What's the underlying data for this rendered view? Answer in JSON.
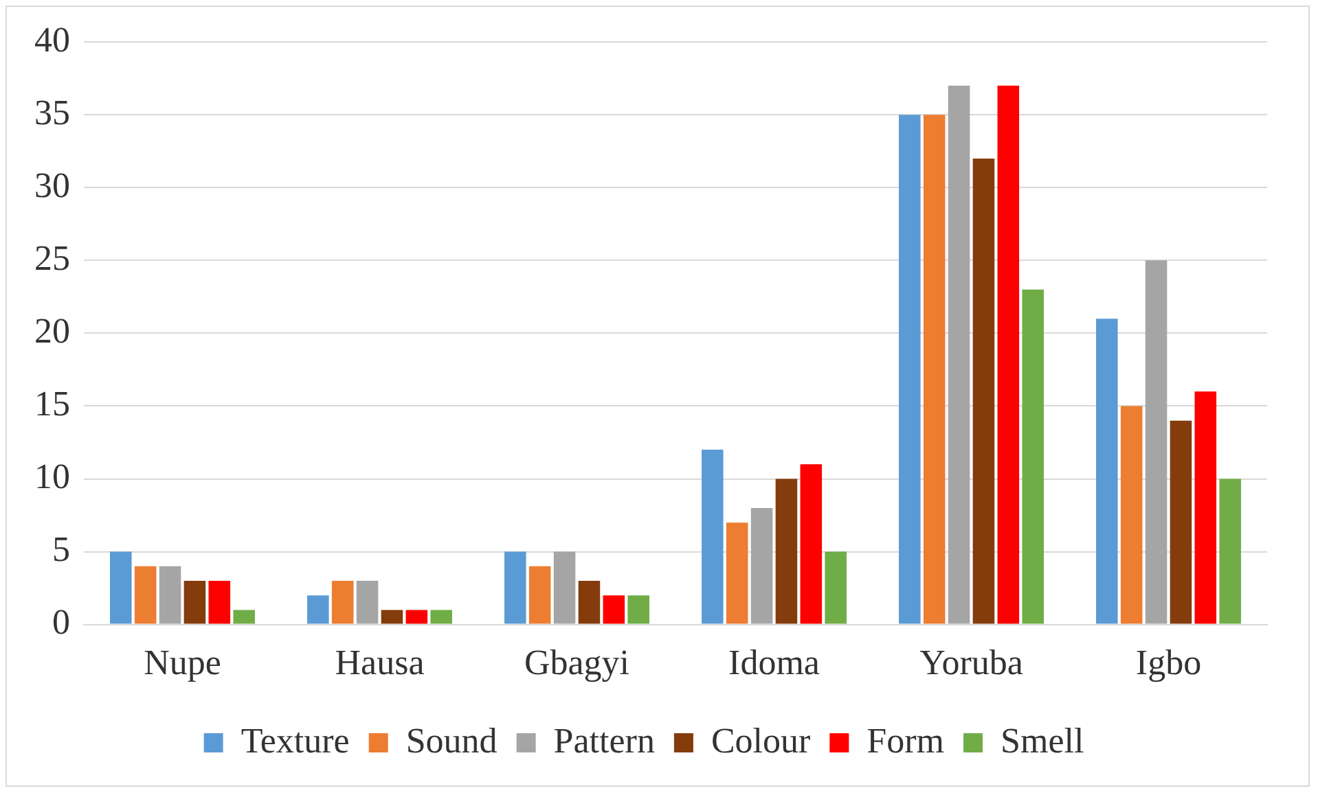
{
  "chart_data": {
    "type": "bar",
    "categories": [
      "Nupe",
      "Hausa",
      "Gbagyi",
      "Idoma",
      "Yoruba",
      "Igbo"
    ],
    "series": [
      {
        "name": "Texture",
        "color": "#5b9bd5",
        "values": [
          5,
          2,
          5,
          12,
          35,
          21
        ]
      },
      {
        "name": "Sound",
        "color": "#ed7d31",
        "values": [
          4,
          3,
          4,
          7,
          35,
          15
        ]
      },
      {
        "name": "Pattern",
        "color": "#a5a5a5",
        "values": [
          4,
          3,
          5,
          8,
          37,
          25
        ]
      },
      {
        "name": "Colour",
        "color": "#843c0c",
        "values": [
          3,
          1,
          3,
          10,
          32,
          14
        ]
      },
      {
        "name": "Form",
        "color": "#ff0000",
        "values": [
          3,
          1,
          2,
          11,
          37,
          16
        ]
      },
      {
        "name": "Smell",
        "color": "#70ad47",
        "values": [
          1,
          1,
          2,
          5,
          23,
          10
        ]
      }
    ],
    "ylim": [
      0,
      40
    ],
    "yticks": [
      0,
      5,
      10,
      15,
      20,
      25,
      30,
      35,
      40
    ],
    "grid": "y",
    "legend": "bottom"
  }
}
